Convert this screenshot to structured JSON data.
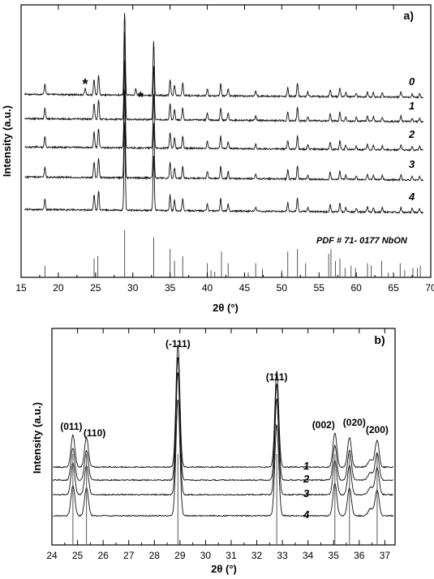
{
  "chart_data": [
    {
      "panel": "a)",
      "type": "line",
      "xlabel": "2θ (°)",
      "ylabel": "Intensity (a.u.)",
      "xlim": [
        15,
        70
      ],
      "x_ticks": [
        15,
        20,
        25,
        30,
        35,
        40,
        45,
        50,
        55,
        60,
        65,
        70
      ],
      "series": [
        {
          "name": "0"
        },
        {
          "name": "1"
        },
        {
          "name": "2"
        },
        {
          "name": "3"
        },
        {
          "name": "4"
        }
      ],
      "peaks": [
        {
          "x": 18.2,
          "h": 0.12
        },
        {
          "x": 24.8,
          "h": 0.18
        },
        {
          "x": 25.4,
          "h": 0.22
        },
        {
          "x": 28.9,
          "h": 1.0
        },
        {
          "x": 32.8,
          "h": 0.62
        },
        {
          "x": 35.0,
          "h": 0.18
        },
        {
          "x": 35.6,
          "h": 0.12
        },
        {
          "x": 36.7,
          "h": 0.14
        },
        {
          "x": 40.0,
          "h": 0.08
        },
        {
          "x": 41.8,
          "h": 0.14
        },
        {
          "x": 42.8,
          "h": 0.08
        },
        {
          "x": 46.5,
          "h": 0.05
        },
        {
          "x": 50.8,
          "h": 0.1
        },
        {
          "x": 52.1,
          "h": 0.15
        },
        {
          "x": 53.5,
          "h": 0.05
        },
        {
          "x": 56.5,
          "h": 0.08
        },
        {
          "x": 57.8,
          "h": 0.1
        },
        {
          "x": 58.6,
          "h": 0.05
        },
        {
          "x": 60.0,
          "h": 0.04
        },
        {
          "x": 61.5,
          "h": 0.06
        },
        {
          "x": 62.3,
          "h": 0.05
        },
        {
          "x": 63.5,
          "h": 0.05
        },
        {
          "x": 66.0,
          "h": 0.06
        },
        {
          "x": 67.5,
          "h": 0.04
        },
        {
          "x": 68.5,
          "h": 0.04
        }
      ],
      "impurity_peaks": [
        23.6,
        30.4
      ],
      "impurity_marker": "*",
      "reference": {
        "label": "PDF # 71- 0177 NbON",
        "lines": [
          {
            "x": 18.2,
            "h": 0.25
          },
          {
            "x": 24.8,
            "h": 0.4
          },
          {
            "x": 25.3,
            "h": 0.45
          },
          {
            "x": 28.9,
            "h": 1.0
          },
          {
            "x": 32.8,
            "h": 0.85
          },
          {
            "x": 35.0,
            "h": 0.6
          },
          {
            "x": 35.6,
            "h": 0.35
          },
          {
            "x": 36.7,
            "h": 0.45
          },
          {
            "x": 40.0,
            "h": 0.3
          },
          {
            "x": 40.5,
            "h": 0.15
          },
          {
            "x": 41.0,
            "h": 0.12
          },
          {
            "x": 41.9,
            "h": 0.55
          },
          {
            "x": 42.8,
            "h": 0.3
          },
          {
            "x": 45.5,
            "h": 0.1
          },
          {
            "x": 46.5,
            "h": 0.3
          },
          {
            "x": 47.4,
            "h": 0.18
          },
          {
            "x": 50.0,
            "h": 0.15
          },
          {
            "x": 50.8,
            "h": 0.55
          },
          {
            "x": 52.1,
            "h": 0.6
          },
          {
            "x": 53.2,
            "h": 0.3
          },
          {
            "x": 56.3,
            "h": 0.5
          },
          {
            "x": 56.6,
            "h": 0.6
          },
          {
            "x": 57.2,
            "h": 0.35
          },
          {
            "x": 57.8,
            "h": 0.4
          },
          {
            "x": 58.5,
            "h": 0.2
          },
          {
            "x": 59.3,
            "h": 0.25
          },
          {
            "x": 59.9,
            "h": 0.2
          },
          {
            "x": 61.5,
            "h": 0.3
          },
          {
            "x": 62.0,
            "h": 0.25
          },
          {
            "x": 63.4,
            "h": 0.35
          },
          {
            "x": 64.3,
            "h": 0.1
          },
          {
            "x": 65.9,
            "h": 0.3
          },
          {
            "x": 66.5,
            "h": 0.15
          },
          {
            "x": 67.6,
            "h": 0.2
          },
          {
            "x": 68.2,
            "h": 0.2
          },
          {
            "x": 68.6,
            "h": 0.25
          }
        ]
      }
    },
    {
      "panel": "b)",
      "type": "line",
      "xlabel": "2θ (°)",
      "ylabel": "Intensity (a.u.)",
      "xlim": [
        24,
        37.4
      ],
      "x_ticks": [
        24,
        25,
        26,
        27,
        28,
        29,
        30,
        31,
        32,
        33,
        34,
        35,
        36,
        37
      ],
      "series": [
        {
          "name": "1"
        },
        {
          "name": "2"
        },
        {
          "name": "3"
        },
        {
          "name": "4"
        }
      ],
      "peaks": [
        {
          "x": 24.82,
          "h": 0.26,
          "label": "(011)"
        },
        {
          "x": 25.35,
          "h": 0.24,
          "label": "(110)"
        },
        {
          "x": 28.92,
          "h": 1.0,
          "label": "(-111)"
        },
        {
          "x": 32.78,
          "h": 0.78,
          "label": "(111)"
        },
        {
          "x": 35.05,
          "h": 0.28,
          "label": "(002)"
        },
        {
          "x": 35.62,
          "h": 0.24,
          "label": "(020)"
        },
        {
          "x": 36.7,
          "h": 0.22,
          "label": "(200)"
        }
      ],
      "reference_lines": [
        24.82,
        25.35,
        28.92,
        32.78,
        35.05,
        35.62,
        36.7
      ]
    }
  ]
}
